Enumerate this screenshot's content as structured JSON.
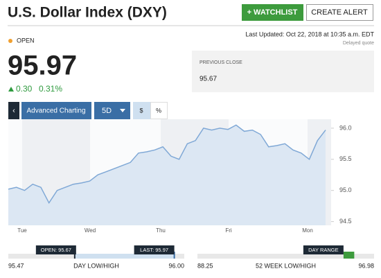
{
  "header": {
    "title": "U.S. Dollar Index (DXY)",
    "watchlist_button": "+ WATCHLIST",
    "alert_button": "CREATE ALERT",
    "status": "OPEN",
    "last_updated": "Last Updated: Oct 22, 2018 at 10:35 a.m. EDT",
    "delay_note": "Delayed quote"
  },
  "quote": {
    "price": "95.97",
    "change": "0.30",
    "change_pct": "0.31%",
    "previous_close_label": "PREVIOUS CLOSE",
    "previous_close": "95.67"
  },
  "toolbar": {
    "advanced": "Advanced Charting",
    "period": "5D",
    "dollar": "$",
    "percent": "%"
  },
  "chart_data": {
    "type": "area",
    "color": "#7fa8d6",
    "fill": "#dce7f3",
    "values": [
      95.02,
      95.05,
      95.0,
      95.1,
      95.05,
      94.8,
      95.0,
      95.05,
      95.1,
      95.12,
      95.15,
      95.25,
      95.3,
      95.35,
      95.4,
      95.45,
      95.6,
      95.62,
      95.65,
      95.7,
      95.55,
      95.5,
      95.75,
      95.8,
      96.0,
      95.97,
      96.0,
      95.98,
      96.05,
      95.95,
      95.97,
      95.9,
      95.7,
      95.72,
      95.75,
      95.65,
      95.6,
      95.5,
      95.8,
      95.97
    ],
    "x_labels": [
      "Tue",
      "Wed",
      "Thu",
      "Fri",
      "Mon"
    ],
    "ylim": [
      94.44,
      96.11
    ],
    "yticks": [
      {
        "value": 96,
        "label": "96.0"
      },
      95.5,
      {
        "value": 95,
        "label": "95.0"
      },
      94.5
    ],
    "grid": false
  },
  "ranges": {
    "day": {
      "title": "DAY LOW/HIGH",
      "low": 95.47,
      "low_label": "95.47",
      "high": 96.0,
      "high_label": "96.00",
      "open": 95.67,
      "open_label": "OPEN: 95.67",
      "last": 95.97,
      "last_label": "LAST: 95.97"
    },
    "week52": {
      "title": "52 WEEK LOW/HIGH",
      "low": 88.25,
      "low_label": "88.25",
      "high": 96.98,
      "high_label": "96.98",
      "range_label": "DAY RANGE",
      "range_low": 95.47,
      "range_high": 96.0
    }
  }
}
